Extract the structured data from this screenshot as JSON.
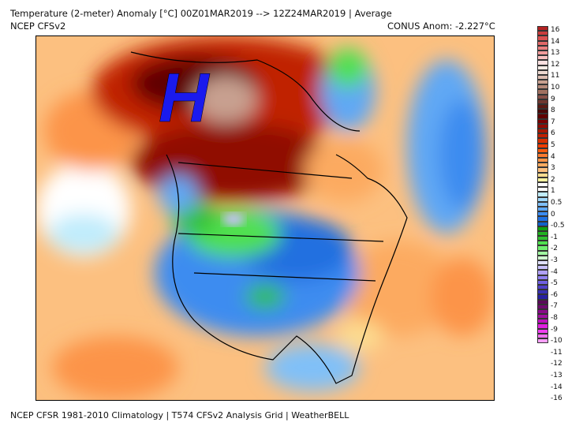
{
  "header": {
    "title": "Temperature (2-meter) Anomaly  [°C] 00Z01MAR2019 --> 12Z24MAR2019 | Average",
    "model": "NCEP  CFSv2",
    "conus_anom": "CONUS Anom: -2.227°C"
  },
  "map": {
    "marker_label": "H",
    "marker_color": "#1a1aee"
  },
  "footer": "NCEP CFSR 1981-2010 Climatology | T574 CFSv2 Analysis Grid | WeatherBELL",
  "colorbar": {
    "labels": [
      "16",
      "14",
      "13",
      "12",
      "11",
      "10",
      "9",
      "8",
      "7",
      "6",
      "5",
      "4",
      "3",
      "2",
      "1",
      "0.5",
      "0",
      "-0.5",
      "-1",
      "-2",
      "-3",
      "-4",
      "-5",
      "-6",
      "-7",
      "-8",
      "-9",
      "-10",
      "-11",
      "-12",
      "-13",
      "-14",
      "-16"
    ],
    "swatches": [
      "#b22222",
      "#c83c3c",
      "#d85050",
      "#e06868",
      "#e88080",
      "#f09a9a",
      "#f8c0c0",
      "#fbe0e0",
      "#f5ece6",
      "#ecd8d0",
      "#dcbcb0",
      "#c8a090",
      "#b48878",
      "#a07060",
      "#885048",
      "#703830",
      "#5a1a14",
      "#4a0808",
      "#600000",
      "#780000",
      "#900a00",
      "#a81800",
      "#c02000",
      "#d83000",
      "#f03c00",
      "#f85a10",
      "#fc7a30",
      "#fc9448",
      "#fcaa60",
      "#fcc080",
      "#fcdc90",
      "#fcf4a0",
      "#ffffff",
      "#ffffff",
      "#c0ecfc",
      "#a0d8fc",
      "#80c0f8",
      "#60a8f4",
      "#3c8cf0",
      "#2070e0",
      "#1060c8",
      "#10a010",
      "#20b020",
      "#30c030",
      "#50e050",
      "#70f070",
      "#a0f8a0",
      "#d0fcd0",
      "#e0e0ff",
      "#c8c0fc",
      "#b0a0f8",
      "#9080f0",
      "#7060e0",
      "#5040c8",
      "#3830b0",
      "#2820a0",
      "#5a0a5a",
      "#700a70",
      "#880a88",
      "#a010a0",
      "#c010c0",
      "#e020e0",
      "#f040f0",
      "#f070f0",
      "#f8a0f8"
    ]
  }
}
